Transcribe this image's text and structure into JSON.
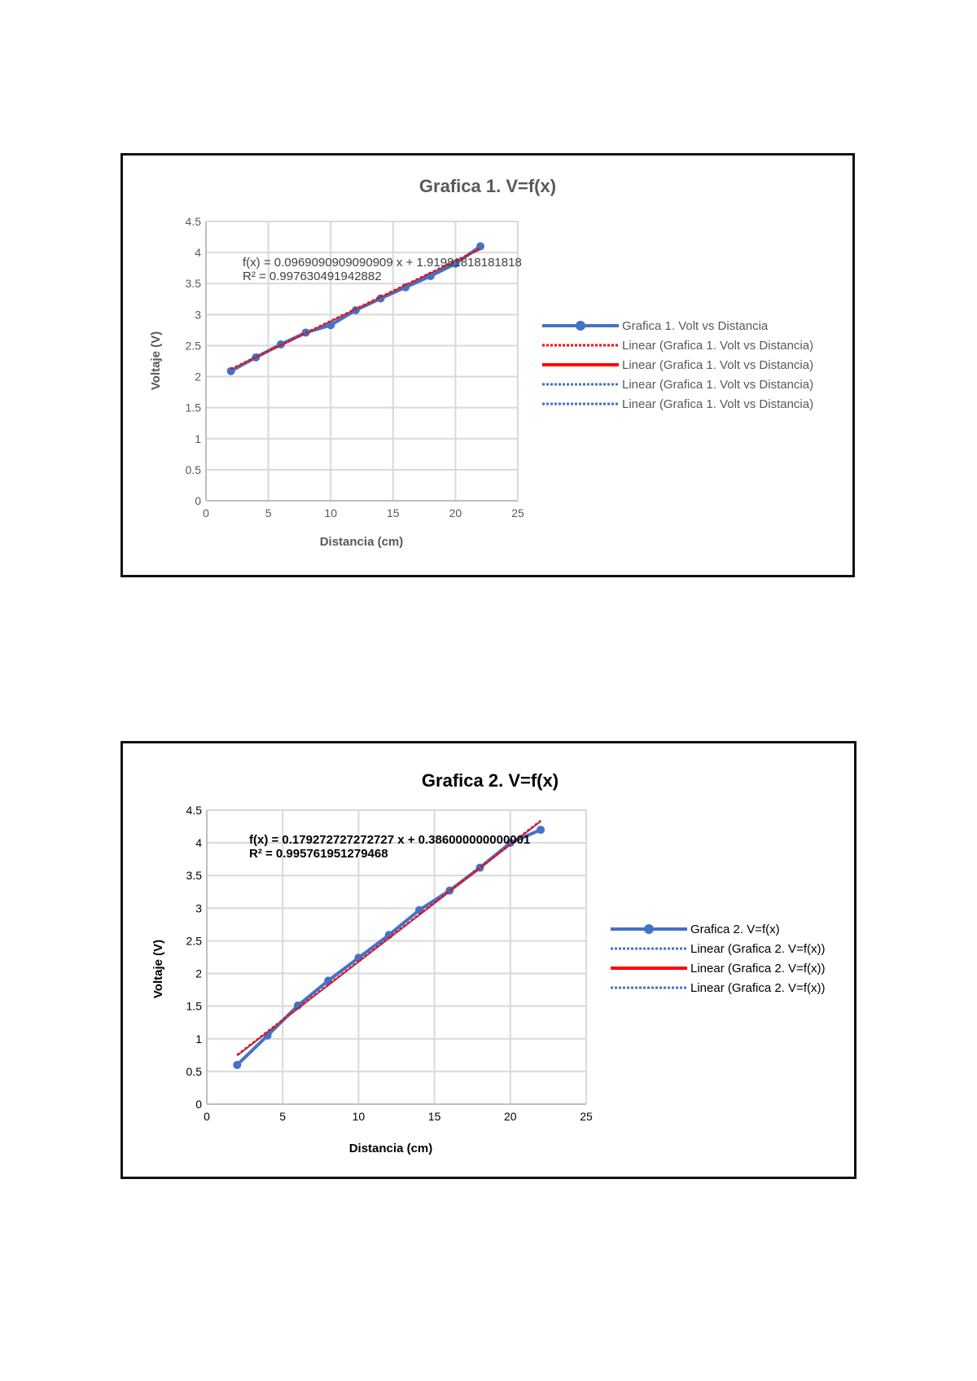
{
  "chart_data": [
    {
      "type": "line",
      "title": "Grafica 1. V=f(x)",
      "xlabel": "Distancia (cm)",
      "ylabel": "Voltaje (V)",
      "xlim": [
        0,
        25
      ],
      "ylim": [
        0,
        4.5
      ],
      "xticks": [
        0,
        5,
        10,
        15,
        20,
        25
      ],
      "yticks": [
        0,
        0.5,
        1,
        1.5,
        2,
        2.5,
        3,
        3.5,
        4,
        4.5
      ],
      "grid": true,
      "legend_position": "right",
      "text_color": "#595959",
      "x": [
        2,
        4,
        6,
        8,
        10,
        12,
        14,
        16,
        18,
        20,
        22
      ],
      "series": [
        {
          "name": "Grafica 1. Volt vs Distancia",
          "values": [
            2.09,
            2.31,
            2.52,
            2.71,
            2.83,
            3.07,
            3.26,
            3.44,
            3.62,
            3.82,
            4.1
          ],
          "color": "#4472C4",
          "style": "solid-marker"
        }
      ],
      "trendline": {
        "slope": 0.0969090909090909,
        "intercept": 1.91981818181818,
        "x_range": [
          2,
          22
        ]
      },
      "annotations": [
        "f(x) = 0.0969090909090909 x + 1.91981818181818",
        "R² = 0.997630491942882"
      ],
      "legend": [
        {
          "label": "Grafica 1. Volt vs Distancia",
          "color": "#4472C4",
          "style": "solid-marker"
        },
        {
          "label": "Linear (Grafica 1. Volt vs Distancia)",
          "color": "#FF0000",
          "style": "dotted"
        },
        {
          "label": "Linear (Grafica 1. Volt vs Distancia)",
          "color": "#FF0000",
          "style": "solid"
        },
        {
          "label": "Linear (Grafica 1. Volt vs Distancia)",
          "color": "#4472C4",
          "style": "dotted"
        },
        {
          "label": "Linear (Grafica 1. Volt vs Distancia)",
          "color": "#4472C4",
          "style": "dotted"
        }
      ]
    },
    {
      "type": "line",
      "title": "Grafica 2. V=f(x)",
      "xlabel": "Distancia (cm)",
      "ylabel": "Voltaje (V)",
      "xlim": [
        0,
        25
      ],
      "ylim": [
        0,
        4.5
      ],
      "xticks": [
        0,
        5,
        10,
        15,
        20,
        25
      ],
      "yticks": [
        0,
        0.5,
        1,
        1.5,
        2,
        2.5,
        3,
        3.5,
        4,
        4.5
      ],
      "grid": true,
      "legend_position": "right",
      "text_color": "#000000",
      "x": [
        2,
        4,
        6,
        8,
        10,
        12,
        14,
        16,
        18,
        20,
        22
      ],
      "series": [
        {
          "name": "Grafica 2. V=f(x)",
          "values": [
            0.6,
            1.05,
            1.51,
            1.89,
            2.24,
            2.59,
            2.97,
            3.27,
            3.62,
            4.0,
            4.2
          ],
          "color": "#4472C4",
          "style": "solid-marker"
        }
      ],
      "trendline": {
        "slope": 0.179272727272727,
        "intercept": 0.386000000000001,
        "x_range": [
          2,
          22
        ]
      },
      "annotations": [
        "f(x) = 0.179272727272727 x + 0.386000000000001",
        "R² = 0.995761951279468"
      ],
      "legend": [
        {
          "label": "Grafica 2. V=f(x)",
          "color": "#4472C4",
          "style": "solid-marker"
        },
        {
          "label": "Linear (Grafica 2. V=f(x))",
          "color": "#4472C4",
          "style": "dotted"
        },
        {
          "label": "Linear (Grafica 2. V=f(x))",
          "color": "#FF0000",
          "style": "solid"
        },
        {
          "label": "Linear (Grafica 2. V=f(x))",
          "color": "#4472C4",
          "style": "dotted"
        }
      ]
    }
  ]
}
